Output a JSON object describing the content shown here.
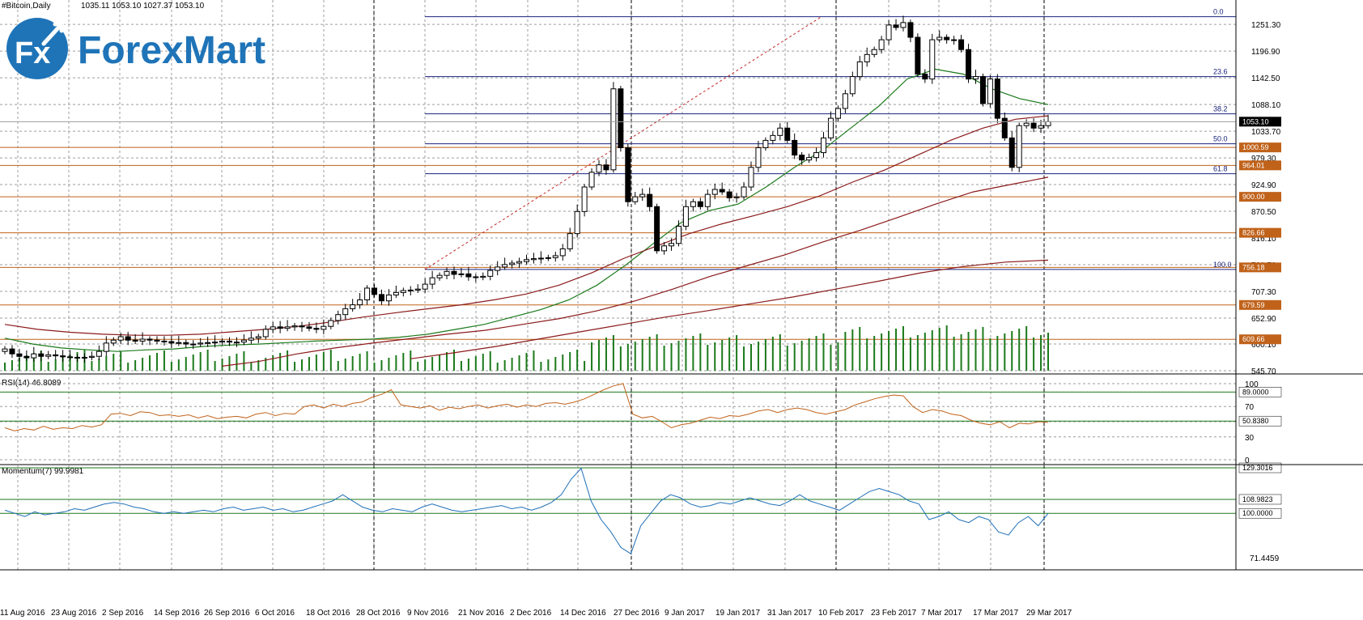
{
  "header": {
    "symbol": "#Bitcoin,Daily",
    "ohlc": "1035.11 1053.10 1027.37 1053.10"
  },
  "logo": {
    "badge": "Fx",
    "text": "ForexMart"
  },
  "colors": {
    "grid": "#9e9e9e",
    "candle_body_up": "#ffffff",
    "candle_body_down": "#000000",
    "ma_fast": "#1b7a1b",
    "ma_slow": "#8b1a1a",
    "fib_line": "#1a237e",
    "level_line": "#c0621a",
    "level_tag": "#c0621a",
    "rsi_line": "#c0621a",
    "momentum_line": "#1f6fb8",
    "indicator_level": "#1b7a1b",
    "volume": "#1b7a1b",
    "logo_blue": "#1f74b8"
  },
  "chart_data": [
    {
      "type": "candlestick",
      "title": "#Bitcoin,Daily",
      "price_axis_ticks": [
        "1251.30",
        "1196.90",
        "1142.50",
        "1088.10",
        "1033.70",
        "979.30",
        "924.90",
        "870.50",
        "816.10",
        "761.70",
        "707.30",
        "652.90",
        "600.10",
        "545.70"
      ],
      "ylim": [
        545.7,
        1268
      ],
      "date_ticks": [
        "11 Aug 2016",
        "23 Aug 2016",
        "2 Sep 2016",
        "14 Sep 2016",
        "26 Sep 2016",
        "6 Oct 2016",
        "18 Oct 2016",
        "28 Oct 2016",
        "9 Nov 2016",
        "21 Nov 2016",
        "2 Dec 2016",
        "14 Dec 2016",
        "27 Dec 2016",
        "9 Jan 2017",
        "19 Jan 2017",
        "31 Jan 2017",
        "10 Feb 2017",
        "23 Feb 2017",
        "7 Mar 2017",
        "17 Mar 2017",
        "29 Mar 2017"
      ],
      "current_price": "1053.10",
      "horizontal_levels": [
        {
          "value": 1000.59,
          "label": "1000.59"
        },
        {
          "value": 964.01,
          "label": "964.01"
        },
        {
          "value": 900.0,
          "label": "900.00"
        },
        {
          "value": 826.66,
          "label": "826.66"
        },
        {
          "value": 756.18,
          "label": "756.18"
        },
        {
          "value": 679.59,
          "label": "679.59"
        },
        {
          "value": 609.66,
          "label": "609.66"
        }
      ],
      "fibonacci": [
        {
          "label": "0.0",
          "value": 1267
        },
        {
          "label": "23.6",
          "value": 1145
        },
        {
          "label": "38.2",
          "value": 1069
        },
        {
          "label": "50.0",
          "value": 1008
        },
        {
          "label": "61.8",
          "value": 947
        },
        {
          "label": "100.0",
          "value": 752
        }
      ],
      "grid": true,
      "series": [
        {
          "kind": "candles",
          "close": [
            590,
            580,
            575,
            572,
            580,
            575,
            578,
            576,
            574,
            573,
            572,
            573,
            575,
            585,
            602,
            608,
            615,
            608,
            606,
            610,
            608,
            606,
            605,
            602,
            603,
            600,
            600,
            602,
            603,
            604,
            606,
            604,
            604,
            608,
            612,
            615,
            630,
            635,
            632,
            635,
            637,
            635,
            632,
            630,
            636,
            648,
            660,
            672,
            680,
            690,
            714,
            701,
            688,
            700,
            705,
            709,
            710,
            712,
            722,
            735,
            740,
            748,
            742,
            743,
            737,
            736,
            738,
            750,
            757,
            762,
            765,
            768,
            772,
            774,
            775,
            776,
            780,
            794,
            825,
            870,
            920,
            950,
            965,
            955,
            1120,
            1000,
            890,
            900,
            905,
            880,
            790,
            800,
            805,
            840,
            880,
            890,
            880,
            905,
            915,
            910,
            898,
            900,
            920,
            960,
            1000,
            1015,
            1025,
            1040,
            1015,
            985,
            975,
            980,
            990,
            1020,
            1060,
            1080,
            1110,
            1145,
            1175,
            1190,
            1200,
            1220,
            1250,
            1245,
            1255,
            1225,
            1150,
            1140,
            1220,
            1225,
            1220,
            1220,
            1200,
            1140,
            1145,
            1090,
            1140,
            1060,
            1020,
            960,
            1045,
            1050,
            1040,
            1045,
            1053
          ]
        },
        {
          "kind": "moving_average",
          "name": "",
          "values": [
            612,
            600,
            592,
            588,
            585,
            588,
            590,
            595,
            598,
            600,
            603,
            606,
            608,
            610,
            614,
            620,
            630,
            640,
            655,
            670,
            690,
            720,
            760,
            805,
            848,
            872,
            885,
            920,
            960,
            995,
            1040,
            1085,
            1140,
            1160,
            1150,
            1120,
            1100,
            1088
          ]
        },
        {
          "kind": "moving_average",
          "name": "",
          "values": [
            640,
            630,
            624,
            620,
            618,
            618,
            620,
            625,
            630,
            636,
            645,
            655,
            664,
            672,
            680,
            690,
            702,
            720,
            745,
            775,
            800,
            825,
            845,
            862,
            880,
            902,
            930,
            955,
            985,
            1015,
            1040,
            1058,
            1065
          ]
        },
        {
          "kind": "moving_average",
          "name": "",
          "values": [
            555,
            565,
            580,
            592,
            602,
            611,
            620,
            628,
            640,
            652,
            668,
            688,
            712,
            738,
            760,
            782,
            808,
            832,
            858,
            885,
            910,
            925,
            940
          ]
        },
        {
          "kind": "moving_average",
          "name": "",
          "values": [
            570,
            582,
            595,
            610,
            625,
            640,
            655,
            668,
            682,
            696,
            712,
            728,
            745,
            758,
            767,
            771
          ]
        }
      ]
    },
    {
      "type": "line",
      "title": "RSI(14) 46.8089",
      "axis_ticks": [
        "100",
        "70",
        "50",
        "30",
        "0"
      ],
      "ylim": [
        0,
        100
      ],
      "levels": [
        {
          "value": 89.0,
          "label": "89.0000"
        },
        {
          "value": 50.838,
          "label": "50.8380"
        }
      ],
      "series": [
        {
          "values": [
            42,
            38,
            41,
            39,
            44,
            40,
            42,
            41,
            45,
            43,
            46,
            60,
            61,
            58,
            63,
            62,
            58,
            59,
            57,
            59,
            55,
            58,
            54,
            56,
            57,
            55,
            60,
            62,
            58,
            61,
            60,
            70,
            72,
            68,
            73,
            70,
            74,
            76,
            82,
            86,
            92,
            72,
            70,
            68,
            71,
            65,
            69,
            67,
            70,
            72,
            68,
            71,
            73,
            69,
            72,
            70,
            74,
            75,
            73,
            76,
            80,
            86,
            92,
            97,
            100,
            60,
            55,
            57,
            50,
            42,
            46,
            48,
            52,
            56,
            54,
            58,
            57,
            60,
            64,
            66,
            62,
            66,
            68,
            66,
            62,
            60,
            63,
            66,
            72,
            76,
            80,
            83,
            85,
            84,
            70,
            62,
            66,
            64,
            60,
            58,
            52,
            48,
            46,
            50,
            42,
            48,
            47,
            50,
            49
          ]
        }
      ]
    },
    {
      "type": "line",
      "title": "Momentum(7) 99.9981",
      "axis_ticks": [
        "71.4459"
      ],
      "ylim": [
        71.4459,
        129.3016
      ],
      "levels": [
        {
          "value": 129.3016,
          "label": "129.3016"
        },
        {
          "value": 108.9823,
          "label": "108.9823"
        },
        {
          "value": 100.0,
          "label": "100.0000"
        }
      ],
      "series": [
        {
          "values": [
            102,
            100,
            98,
            101,
            99,
            100,
            101,
            103,
            102,
            104,
            106,
            107,
            106,
            104,
            103,
            101,
            100,
            101,
            100,
            101,
            102,
            101,
            103,
            104,
            102,
            103,
            104,
            102,
            103,
            101,
            102,
            104,
            106,
            108,
            112,
            108,
            104,
            102,
            101,
            103,
            102,
            101,
            104,
            106,
            104,
            102,
            101,
            102,
            103,
            104,
            105,
            103,
            104,
            102,
            104,
            107,
            112,
            122,
            129,
            108,
            96,
            88,
            78,
            74,
            92,
            100,
            108,
            112,
            110,
            106,
            104,
            105,
            107,
            106,
            108,
            110,
            108,
            106,
            105,
            108,
            112,
            108,
            106,
            104,
            102,
            106,
            110,
            114,
            116,
            114,
            112,
            108,
            106,
            96,
            98,
            101,
            96,
            94,
            98,
            96,
            88,
            86,
            94,
            98,
            92,
            100
          ]
        }
      ]
    }
  ]
}
